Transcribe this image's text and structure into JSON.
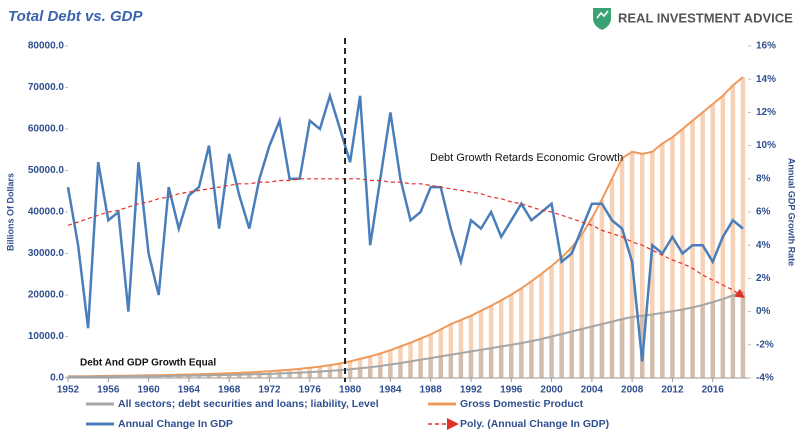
{
  "chart_data": {
    "type": "combo",
    "title": "Total Debt vs. GDP",
    "brand": "REAL INVESTMENT ADVICE",
    "ylabel": "Billions Of Dollars",
    "y2label": "Annual GDP Growth Rate",
    "annotations": [
      "Debt Growth Retards Economic Growth",
      "Debt And GDP Growth Equal"
    ],
    "vline_x": 1979.5,
    "xlim": [
      1952,
      2019.5
    ],
    "xticks": [
      1952,
      1956,
      1960,
      1964,
      1968,
      1972,
      1976,
      1980,
      1984,
      1988,
      1992,
      1996,
      2000,
      2004,
      2008,
      2012,
      2016
    ],
    "ylim": [
      0,
      80000
    ],
    "yticks": [
      {
        "value": 0,
        "label": "0.0"
      },
      {
        "value": 10000,
        "label": "10000.0"
      },
      {
        "value": 20000,
        "label": "20000.0"
      },
      {
        "value": 30000,
        "label": "30000.0"
      },
      {
        "value": 40000,
        "label": "40000.0"
      },
      {
        "value": 50000,
        "label": "50000.0"
      },
      {
        "value": 60000,
        "label": "60000.0"
      },
      {
        "value": 70000,
        "label": "70000.0"
      },
      {
        "value": 80000,
        "label": "80000.0"
      }
    ],
    "y2lim": [
      -4,
      16
    ],
    "y2ticks": [
      {
        "value": -4,
        "label": "-4%"
      },
      {
        "value": -2,
        "label": "-2%"
      },
      {
        "value": 0,
        "label": "0%"
      },
      {
        "value": 2,
        "label": "2%"
      },
      {
        "value": 4,
        "label": "4%"
      },
      {
        "value": 6,
        "label": "6%"
      },
      {
        "value": 8,
        "label": "8%"
      },
      {
        "value": 10,
        "label": "10%"
      },
      {
        "value": 12,
        "label": "12%"
      },
      {
        "value": 14,
        "label": "14%"
      },
      {
        "value": 16,
        "label": "16%"
      }
    ],
    "x": [
      1952,
      1953,
      1954,
      1955,
      1956,
      1957,
      1958,
      1959,
      1960,
      1961,
      1962,
      1963,
      1964,
      1965,
      1966,
      1967,
      1968,
      1969,
      1970,
      1971,
      1972,
      1973,
      1974,
      1975,
      1976,
      1977,
      1978,
      1979,
      1980,
      1981,
      1982,
      1983,
      1984,
      1985,
      1986,
      1987,
      1988,
      1989,
      1990,
      1991,
      1992,
      1993,
      1994,
      1995,
      1996,
      1997,
      1998,
      1999,
      2000,
      2001,
      2002,
      2003,
      2004,
      2005,
      2006,
      2007,
      2008,
      2009,
      2010,
      2011,
      2012,
      2013,
      2014,
      2015,
      2016,
      2017,
      2018,
      2019
    ],
    "series": [
      {
        "name": "Gross Domestic Product",
        "color": "#ed9a5c",
        "kind": "bars",
        "values": [
          400,
          420,
          440,
          470,
          500,
          530,
          560,
          600,
          640,
          680,
          730,
          780,
          840,
          900,
          970,
          1050,
          1140,
          1240,
          1350,
          1480,
          1620,
          1800,
          2000,
          2200,
          2450,
          2750,
          3100,
          3500,
          4000,
          4600,
          5200,
          5900,
          6700,
          7600,
          8500,
          9500,
          10500,
          11700,
          13000,
          14000,
          15000,
          16200,
          17400,
          18700,
          20100,
          21600,
          23300,
          25100,
          27000,
          29000,
          31500,
          34500,
          38500,
          43000,
          48000,
          53000,
          54500,
          54000,
          54500,
          56500,
          58000,
          60000,
          62000,
          64000,
          66000,
          68000,
          70500,
          72500
        ]
      },
      {
        "name": "All sectors; debt securities and loans; liability, Level",
        "color": "#a6a6a6",
        "kind": "bars",
        "values": [
          300,
          310,
          320,
          340,
          360,
          380,
          400,
          420,
          440,
          460,
          490,
          520,
          560,
          600,
          640,
          690,
          740,
          800,
          860,
          930,
          1000,
          1100,
          1200,
          1300,
          1420,
          1560,
          1720,
          1900,
          2100,
          2350,
          2600,
          2900,
          3250,
          3600,
          4000,
          4400,
          4800,
          5200,
          5600,
          6000,
          6400,
          6800,
          7200,
          7600,
          8000,
          8400,
          8900,
          9400,
          10000,
          10600,
          11200,
          11800,
          12400,
          13000,
          13600,
          14200,
          14700,
          15000,
          15300,
          15700,
          16100,
          16500,
          17000,
          17600,
          18300,
          19000,
          19900,
          20800
        ]
      },
      {
        "name": "Annual Change In GDP",
        "color": "#4a7ebb",
        "kind": "line",
        "axis": "y2",
        "values": [
          7.5,
          4,
          -1,
          9,
          5.5,
          6,
          0,
          9,
          3.5,
          1,
          7.5,
          5,
          7,
          7.5,
          10,
          5,
          9.5,
          7,
          5,
          8,
          10,
          11.5,
          8,
          8,
          11.5,
          11,
          13,
          11,
          9,
          13,
          4,
          8,
          12,
          8,
          5.5,
          6,
          7.5,
          7.5,
          5,
          3,
          5.5,
          5,
          6,
          4.5,
          5.5,
          6.5,
          5.5,
          6,
          6.5,
          3,
          3.5,
          5,
          6.5,
          6.5,
          5.5,
          5,
          3,
          -3,
          4,
          3.5,
          4.5,
          3.5,
          4,
          4,
          3,
          4.5,
          5.5,
          5
        ]
      },
      {
        "name": "Poly. (Annual Change In GDP)",
        "color": "#e0302a",
        "kind": "dashed",
        "axis": "y2",
        "values": [
          5.2,
          5.4,
          5.6,
          5.8,
          6.0,
          6.1,
          6.3,
          6.5,
          6.6,
          6.8,
          6.9,
          7.1,
          7.2,
          7.3,
          7.4,
          7.5,
          7.6,
          7.7,
          7.7,
          7.8,
          7.8,
          7.9,
          7.9,
          8.0,
          8.0,
          8.0,
          8.0,
          8.0,
          8.0,
          8.0,
          7.9,
          7.9,
          7.8,
          7.8,
          7.7,
          7.7,
          7.6,
          7.5,
          7.4,
          7.3,
          7.2,
          7.1,
          6.9,
          6.8,
          6.6,
          6.5,
          6.3,
          6.1,
          6.0,
          5.8,
          5.6,
          5.4,
          5.2,
          4.9,
          4.7,
          4.5,
          4.2,
          4.0,
          3.7,
          3.4,
          3.1,
          2.9,
          2.6,
          2.2,
          1.9,
          1.6,
          1.3,
          0.9
        ]
      }
    ]
  }
}
